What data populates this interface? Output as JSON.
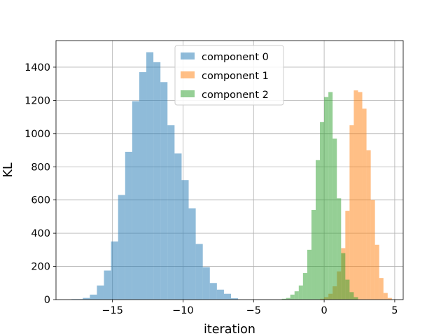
{
  "chart_data": {
    "type": "histogram",
    "xlabel": "iteration",
    "ylabel": "KL",
    "xlim": [
      -19,
      5.6
    ],
    "ylim": [
      0,
      1560
    ],
    "x_ticks": [
      -15,
      -10,
      -5,
      0,
      5
    ],
    "x_tick_labels": [
      "−15",
      "−10",
      "−5",
      "0",
      "5"
    ],
    "y_ticks": [
      0,
      200,
      400,
      600,
      800,
      1000,
      1200,
      1400
    ],
    "y_tick_labels": [
      "0",
      "200",
      "400",
      "600",
      "800",
      "1000",
      "1200",
      "1400"
    ],
    "grid": true,
    "legend_position": "upper center",
    "series": [
      {
        "name": "component 0",
        "color": "#1f77b4",
        "alpha": 0.5,
        "bins": [
          [
            -17.9,
            -17.1,
            3
          ],
          [
            -17.1,
            -16.6,
            10
          ],
          [
            -16.6,
            -16.1,
            30
          ],
          [
            -16.1,
            -15.6,
            85
          ],
          [
            -15.6,
            -15.1,
            175
          ],
          [
            -15.1,
            -14.6,
            350
          ],
          [
            -14.6,
            -14.1,
            630
          ],
          [
            -14.1,
            -13.6,
            890
          ],
          [
            -13.6,
            -13.1,
            1195
          ],
          [
            -13.1,
            -12.6,
            1370
          ],
          [
            -12.6,
            -12.1,
            1490
          ],
          [
            -12.1,
            -11.6,
            1430
          ],
          [
            -11.6,
            -11.1,
            1310
          ],
          [
            -11.1,
            -10.6,
            1050
          ],
          [
            -10.6,
            -10.1,
            880
          ],
          [
            -10.1,
            -9.6,
            720
          ],
          [
            -9.6,
            -9.1,
            550
          ],
          [
            -9.1,
            -8.6,
            335
          ],
          [
            -8.6,
            -8.1,
            195
          ],
          [
            -8.1,
            -7.6,
            100
          ],
          [
            -7.6,
            -7.1,
            60
          ],
          [
            -7.1,
            -6.6,
            35
          ],
          [
            -6.6,
            -6.1,
            8
          ]
        ]
      },
      {
        "name": "component 1",
        "color": "#ff7f0e",
        "alpha": 0.5,
        "bins": [
          [
            -0.3,
            0.0,
            5
          ],
          [
            0.0,
            0.3,
            15
          ],
          [
            0.3,
            0.6,
            35
          ],
          [
            0.6,
            0.9,
            80
          ],
          [
            0.9,
            1.2,
            170
          ],
          [
            1.2,
            1.5,
            310
          ],
          [
            1.5,
            1.8,
            535
          ],
          [
            1.8,
            2.1,
            1050
          ],
          [
            2.1,
            2.4,
            1260
          ],
          [
            2.4,
            2.7,
            1250
          ],
          [
            2.7,
            3.0,
            1150
          ],
          [
            3.0,
            3.3,
            900
          ],
          [
            3.3,
            3.6,
            600
          ],
          [
            3.6,
            3.9,
            330
          ],
          [
            3.9,
            4.2,
            130
          ],
          [
            4.2,
            4.5,
            40
          ],
          [
            4.5,
            4.8,
            10
          ]
        ]
      },
      {
        "name": "component 2",
        "color": "#2ca02c",
        "alpha": 0.5,
        "bins": [
          [
            -3.0,
            -2.7,
            5
          ],
          [
            -2.7,
            -2.4,
            10
          ],
          [
            -2.4,
            -2.1,
            30
          ],
          [
            -2.1,
            -1.8,
            50
          ],
          [
            -1.8,
            -1.5,
            85
          ],
          [
            -1.5,
            -1.2,
            160
          ],
          [
            -1.2,
            -0.9,
            300
          ],
          [
            -0.9,
            -0.6,
            540
          ],
          [
            -0.6,
            -0.3,
            840
          ],
          [
            -0.3,
            0.0,
            1070
          ],
          [
            0.0,
            0.3,
            1220
          ],
          [
            0.3,
            0.6,
            1250
          ],
          [
            0.6,
            0.9,
            970
          ],
          [
            0.9,
            1.2,
            610
          ],
          [
            1.2,
            1.5,
            280
          ],
          [
            1.5,
            1.8,
            120
          ],
          [
            1.8,
            2.1,
            45
          ],
          [
            2.1,
            2.4,
            15
          ]
        ]
      }
    ]
  }
}
